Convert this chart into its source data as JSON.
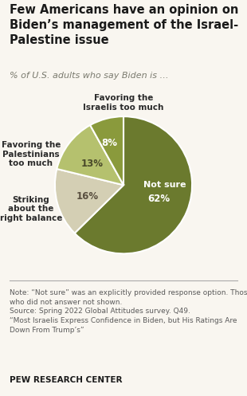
{
  "title": "Few Americans have an opinion on\nBiden’s management of the Israel-\nPalestine issue",
  "subtitle": "% of U.S. adults who say Biden is …",
  "slices": [
    62,
    16,
    13,
    8
  ],
  "labels": [
    "Not sure",
    "Striking about the\nright balance",
    "Favoring the\nPalestinians\ntoo much",
    "Favoring the\nIsraelis too much"
  ],
  "pct_labels": [
    "62%",
    "16%",
    "13%",
    "8%"
  ],
  "colors": [
    "#6b7a2e",
    "#d4cfb4",
    "#b5c16e",
    "#8a9a3c"
  ],
  "startangle": 90,
  "note": "Note: “Not sure” was an explicitly provided response option. Those\nwho did not answer not shown.\nSource: Spring 2022 Global Attitudes survey. Q49.\n“Most Israelis Express Confidence in Biden, but His Ratings Are\nDown From Trump’s”",
  "footer": "PEW RESEARCH CENTER",
  "background_color": "#f9f6f0",
  "title_color": "#1a1a1a",
  "subtitle_color": "#7a7a6e",
  "note_color": "#5a5a5a",
  "footer_color": "#1a1a1a"
}
